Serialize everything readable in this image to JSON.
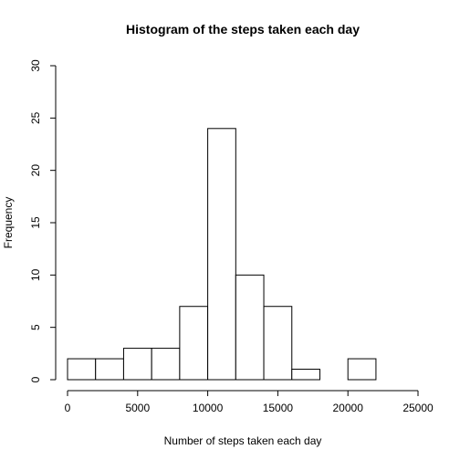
{
  "chart_data": {
    "type": "bar",
    "title": "Histogram of the steps taken each day",
    "xlabel": "Number of steps taken each day",
    "ylabel": "Frequency",
    "bin_edges": [
      0,
      2000,
      4000,
      6000,
      8000,
      10000,
      12000,
      14000,
      16000,
      18000,
      20000,
      22000
    ],
    "values": [
      2,
      2,
      3,
      3,
      7,
      24,
      10,
      7,
      1,
      0,
      2
    ],
    "xlim": [
      0,
      25000
    ],
    "ylim": [
      0,
      30
    ],
    "x_ticks": [
      0,
      5000,
      10000,
      15000,
      20000,
      25000
    ],
    "x_tick_labels": [
      "0",
      "5000",
      "10000",
      "15000",
      "20000",
      "25000"
    ],
    "y_ticks": [
      0,
      5,
      10,
      15,
      20,
      25,
      30
    ],
    "y_tick_labels": [
      "0",
      "5",
      "10",
      "15",
      "20",
      "25",
      "30"
    ],
    "bar_fill": "#ffffff",
    "bar_stroke": "#000000",
    "grid": false
  }
}
